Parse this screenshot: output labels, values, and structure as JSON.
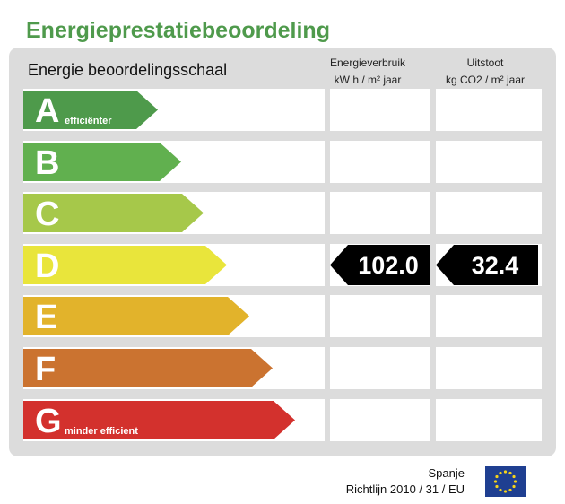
{
  "title": "Energieprestatiebeoordeling",
  "scale_label": "Energie beoordelingsschaal",
  "columns": {
    "energy": {
      "line1": "Energieverbruik",
      "line2": "kW h / m² jaar"
    },
    "emission": {
      "line1": "Uitstoot",
      "line2": "kg CO2 / m² jaar"
    }
  },
  "classes": [
    {
      "letter": "A",
      "sub": "efficiënter",
      "color": "#4e9a4b"
    },
    {
      "letter": "B",
      "sub": "",
      "color": "#61b04f"
    },
    {
      "letter": "C",
      "sub": "",
      "color": "#a6c84a"
    },
    {
      "letter": "D",
      "sub": "",
      "color": "#e9e53b"
    },
    {
      "letter": "E",
      "sub": "",
      "color": "#e2b32b"
    },
    {
      "letter": "F",
      "sub": "",
      "color": "#cb7330"
    },
    {
      "letter": "G",
      "sub": "minder efficient",
      "color": "#d3312d"
    }
  ],
  "rating": {
    "class": "D",
    "energy": "102.0",
    "emission": "32.4"
  },
  "footer": {
    "country": "Spanje",
    "directive": "Richtlijn 2010 / 31 / EU"
  },
  "flag_icon": "eu-flag-icon",
  "colors": {
    "title": "#4f9a4c",
    "panel": "#dcdcdc",
    "indicator": "#000000"
  }
}
